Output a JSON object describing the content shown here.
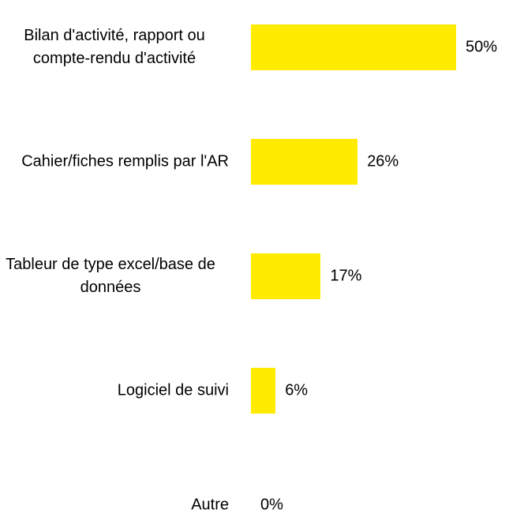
{
  "chart_data": {
    "type": "bar",
    "orientation": "horizontal",
    "categories": [
      "Bilan d'activité, rapport ou compte-rendu d'activité",
      "Cahier/fiches remplis par l'AR",
      "Tableur de type excel/base de données",
      "Logiciel de suivi",
      "Autre"
    ],
    "values": [
      50,
      26,
      17,
      6,
      0
    ],
    "value_labels": [
      "50%",
      "26%",
      "17%",
      "6%",
      "0%"
    ],
    "color": "#ffeb00"
  }
}
